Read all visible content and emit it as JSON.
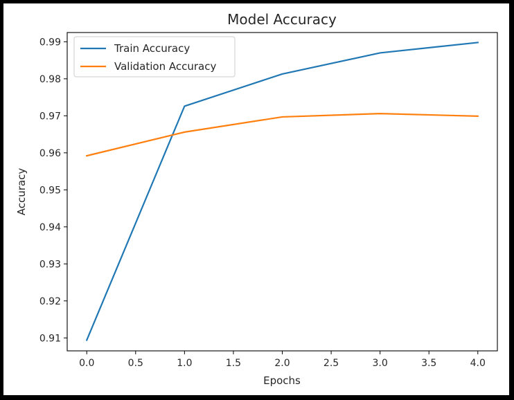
{
  "chart_data": {
    "type": "line",
    "title": "Model Accuracy",
    "xlabel": "Epochs",
    "ylabel": "Accuracy",
    "x": [
      0,
      1,
      2,
      3,
      4
    ],
    "xlim": [
      -0.2,
      4.2
    ],
    "ylim": [
      0.9065,
      0.9925
    ],
    "xticks": [
      0.0,
      0.5,
      1.0,
      1.5,
      2.0,
      2.5,
      3.0,
      3.5,
      4.0
    ],
    "xtick_labels": [
      "0.0",
      "0.5",
      "1.0",
      "1.5",
      "2.0",
      "2.5",
      "3.0",
      "3.5",
      "4.0"
    ],
    "yticks": [
      0.91,
      0.92,
      0.93,
      0.94,
      0.95,
      0.96,
      0.97,
      0.98,
      0.99
    ],
    "ytick_labels": [
      "0.91",
      "0.92",
      "0.93",
      "0.94",
      "0.95",
      "0.96",
      "0.97",
      "0.98",
      "0.99"
    ],
    "grid": false,
    "legend_position": "upper-left",
    "series": [
      {
        "name": "Train Accuracy",
        "color": "#1f77b4",
        "values": [
          0.9094,
          0.9726,
          0.9813,
          0.987,
          0.9898
        ]
      },
      {
        "name": "Validation Accuracy",
        "color": "#ff7f0e",
        "values": [
          0.9592,
          0.9656,
          0.9697,
          0.9706,
          0.9699
        ]
      }
    ]
  }
}
